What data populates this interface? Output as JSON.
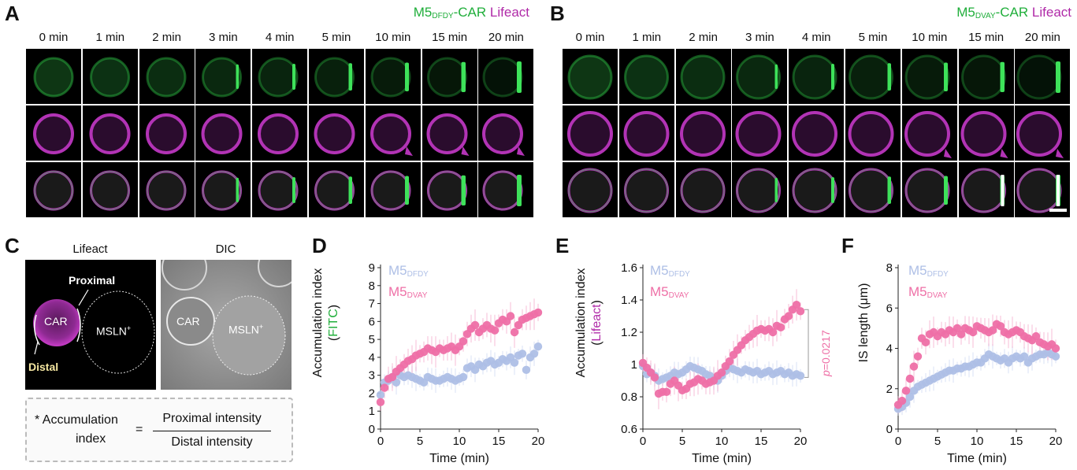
{
  "panelA": {
    "letter": "A",
    "title_prefix": "M5",
    "title_sub": "DFDY",
    "title_mid": "-CAR",
    "title_lifeact": "Lifeact",
    "times": [
      "0 min",
      "1 min",
      "2 min",
      "3 min",
      "4 min",
      "5 min",
      "10 min",
      "15 min",
      "20 min"
    ]
  },
  "panelB": {
    "letter": "B",
    "title_prefix": "M5",
    "title_sub": "DVAY",
    "title_mid": "-CAR",
    "title_lifeact": "Lifeact",
    "times": [
      "0 min",
      "1 min",
      "2 min",
      "3 min",
      "4 min",
      "5 min",
      "10 min",
      "15 min",
      "20 min"
    ]
  },
  "panelC": {
    "letter": "C",
    "label_lifeact": "Lifeact",
    "label_dic": "DIC",
    "proximal": "Proximal",
    "distal": "Distal",
    "car": "CAR",
    "msln": "MSLN",
    "msln_sup": "+",
    "car_dic": "CAR",
    "formula_lhs1": "* Accumulation",
    "formula_lhs2": "index",
    "formula_eq": "=",
    "formula_num": "Proximal intensity",
    "formula_den": "Distal intensity"
  },
  "panelD": {
    "letter": "D",
    "legend_prefix": "M5",
    "legend1_sub": "DFDY",
    "legend2_sub": "DVAY",
    "ylabel1": "Accumulation index",
    "ylabel2_open": "(",
    "ylabel2_word": "FITC",
    "ylabel2_close": ")",
    "xlabel": "Time (min)"
  },
  "panelE": {
    "letter": "E",
    "legend_prefix": "M5",
    "legend1_sub": "DFDY",
    "legend2_sub": "DVAY",
    "ylabel1": "Accumulation index",
    "ylabel2_open": "(",
    "ylabel2_word": "Lifeact",
    "ylabel2_close": ")",
    "xlabel": "Time (min)",
    "pvalue_p": "p",
    "pvalue": "=0.0217"
  },
  "panelF": {
    "letter": "F",
    "legend_prefix": "M5",
    "legend1_sub": "DFDY",
    "legend2_sub": "DVAY",
    "ylabel": "IS length (μm)",
    "xlabel": "Time (min)"
  },
  "colors": {
    "dfdy": "#aebfe6",
    "dvay": "#ee6fa6",
    "green": "#1fae3a",
    "magenta": "#b02aa8"
  },
  "chart_data": [
    {
      "id": "D",
      "type": "scatter",
      "xlim": [
        0,
        20
      ],
      "ylim": [
        0,
        9
      ],
      "xticks": [
        "0",
        "5",
        "10",
        "15",
        "20"
      ],
      "yticks": [
        "0",
        "1",
        "2",
        "3",
        "4",
        "5",
        "6",
        "7",
        "8",
        "9"
      ],
      "xlabel": "Time (min)",
      "ylabel": "Accumulation index (FITC)",
      "series": [
        {
          "name": "M5DFDY",
          "x": [
            0,
            0.5,
            1,
            1.5,
            2,
            2.5,
            3,
            3.5,
            4,
            4.5,
            5,
            5.5,
            6,
            6.5,
            7,
            7.5,
            8,
            8.5,
            9,
            9.5,
            10,
            10.5,
            11,
            11.5,
            12,
            12.5,
            13,
            13.5,
            14,
            14.5,
            15,
            15.5,
            16,
            16.5,
            17,
            17.5,
            18,
            18.5,
            19,
            19.5,
            20
          ],
          "y": [
            1.9,
            2.6,
            2.7,
            2.9,
            2.6,
            3.0,
            2.9,
            3.0,
            2.9,
            2.8,
            2.7,
            2.6,
            2.9,
            2.8,
            2.7,
            2.7,
            2.8,
            2.9,
            2.8,
            2.7,
            2.8,
            2.9,
            3.4,
            3.5,
            3.3,
            3.6,
            3.5,
            3.7,
            3.8,
            3.6,
            3.7,
            3.9,
            3.8,
            4.0,
            3.7,
            4.1,
            4.2,
            3.3,
            4.0,
            4.2,
            4.6
          ]
        },
        {
          "name": "M5DVAY",
          "x": [
            0,
            0.5,
            1,
            1.5,
            2,
            2.5,
            3,
            3.5,
            4,
            4.5,
            5,
            5.5,
            6,
            6.5,
            7,
            7.5,
            8,
            8.5,
            9,
            9.5,
            10,
            10.5,
            11,
            11.5,
            12,
            12.5,
            13,
            13.5,
            14,
            14.5,
            15,
            15.5,
            16,
            16.5,
            17,
            17.5,
            18,
            18.5,
            19,
            19.5,
            20
          ],
          "y": [
            1.5,
            2.3,
            2.8,
            2.9,
            3.2,
            3.4,
            3.6,
            3.8,
            3.9,
            4.1,
            4.2,
            4.3,
            4.5,
            4.4,
            4.3,
            4.5,
            4.4,
            4.5,
            4.6,
            4.4,
            4.6,
            4.9,
            5.3,
            5.6,
            5.8,
            5.4,
            5.6,
            5.8,
            5.6,
            5.5,
            5.9,
            6.1,
            6.0,
            6.3,
            5.4,
            5.8,
            6.1,
            6.2,
            6.3,
            6.4,
            6.5
          ]
        }
      ]
    },
    {
      "id": "E",
      "type": "scatter",
      "xlim": [
        0,
        20
      ],
      "ylim": [
        0.6,
        1.6
      ],
      "xticks": [
        "0",
        "5",
        "10",
        "15",
        "20"
      ],
      "yticks": [
        "0.6",
        "0.8",
        "1",
        "1.2",
        "1.4",
        "1.6"
      ],
      "xlabel": "Time (min)",
      "ylabel": "Accumulation index (Lifeact)",
      "series": [
        {
          "name": "M5DFDY",
          "x": [
            0,
            0.5,
            1,
            1.5,
            2,
            2.5,
            3,
            3.5,
            4,
            4.5,
            5,
            5.5,
            6,
            6.5,
            7,
            7.5,
            8,
            8.5,
            9,
            9.5,
            10,
            10.5,
            11,
            11.5,
            12,
            12.5,
            13,
            13.5,
            14,
            14.5,
            15,
            15.5,
            16,
            16.5,
            17,
            17.5,
            18,
            18.5,
            19,
            19.5,
            20
          ],
          "y": [
            0.99,
            0.94,
            0.95,
            0.93,
            0.9,
            0.91,
            0.92,
            0.93,
            0.95,
            0.94,
            0.95,
            0.97,
            0.99,
            0.98,
            0.97,
            0.96,
            0.94,
            0.93,
            0.91,
            0.9,
            0.93,
            0.96,
            0.98,
            0.97,
            0.96,
            0.95,
            0.97,
            0.96,
            0.95,
            0.96,
            0.94,
            0.95,
            0.96,
            0.94,
            0.95,
            0.96,
            0.94,
            0.95,
            0.93,
            0.94,
            0.93
          ]
        },
        {
          "name": "M5DVAY",
          "x": [
            0,
            0.5,
            1,
            1.5,
            2,
            2.5,
            3,
            3.5,
            4,
            4.5,
            5,
            5.5,
            6,
            6.5,
            7,
            7.5,
            8,
            8.5,
            9,
            9.5,
            10,
            10.5,
            11,
            11.5,
            12,
            12.5,
            13,
            13.5,
            14,
            14.5,
            15,
            15.5,
            16,
            16.5,
            17,
            17.5,
            18,
            18.5,
            19,
            19.5,
            20
          ],
          "y": [
            1.01,
            0.98,
            0.95,
            0.92,
            0.82,
            0.83,
            0.83,
            0.88,
            0.9,
            0.87,
            0.84,
            0.85,
            0.88,
            0.89,
            0.91,
            0.9,
            0.88,
            0.89,
            0.9,
            0.93,
            0.95,
            0.99,
            1.02,
            1.06,
            1.09,
            1.12,
            1.15,
            1.17,
            1.19,
            1.21,
            1.22,
            1.21,
            1.22,
            1.2,
            1.24,
            1.23,
            1.28,
            1.3,
            1.34,
            1.37,
            1.33
          ]
        }
      ]
    },
    {
      "id": "F",
      "type": "scatter",
      "xlim": [
        0,
        20
      ],
      "ylim": [
        0,
        8
      ],
      "xticks": [
        "0",
        "5",
        "10",
        "15",
        "20"
      ],
      "yticks": [
        "0",
        "2",
        "4",
        "6",
        "8"
      ],
      "xlabel": "Time (min)",
      "ylabel": "IS length (μm)",
      "series": [
        {
          "name": "M5DFDY",
          "x": [
            0,
            0.5,
            1,
            1.5,
            2,
            2.5,
            3,
            3.5,
            4,
            4.5,
            5,
            5.5,
            6,
            6.5,
            7,
            7.5,
            8,
            8.5,
            9,
            9.5,
            10,
            10.5,
            11,
            11.5,
            12,
            12.5,
            13,
            13.5,
            14,
            14.5,
            15,
            15.5,
            16,
            16.5,
            17,
            17.5,
            18,
            18.5,
            19,
            19.5,
            20
          ],
          "y": [
            1.0,
            1.1,
            1.3,
            1.6,
            1.9,
            2.1,
            2.2,
            2.3,
            2.4,
            2.5,
            2.6,
            2.7,
            2.8,
            2.9,
            2.9,
            3.0,
            3.0,
            3.1,
            3.1,
            3.2,
            3.3,
            3.3,
            3.5,
            3.7,
            3.6,
            3.5,
            3.4,
            3.5,
            3.3,
            3.5,
            3.6,
            3.5,
            3.6,
            3.3,
            3.5,
            3.6,
            3.7,
            3.7,
            3.8,
            3.7,
            3.6
          ]
        },
        {
          "name": "M5DVAY",
          "x": [
            0,
            0.5,
            1,
            1.5,
            2,
            2.5,
            3,
            3.5,
            4,
            4.5,
            5,
            5.5,
            6,
            6.5,
            7,
            7.5,
            8,
            8.5,
            9,
            9.5,
            10,
            10.5,
            11,
            11.5,
            12,
            12.5,
            13,
            13.5,
            14,
            14.5,
            15,
            15.5,
            16,
            16.5,
            17,
            17.5,
            18,
            18.5,
            19,
            19.5,
            20
          ],
          "y": [
            1.2,
            1.4,
            1.9,
            2.5,
            3.1,
            3.6,
            4.5,
            4.3,
            4.7,
            4.8,
            4.6,
            4.8,
            4.7,
            4.9,
            4.8,
            5.0,
            4.7,
            5.0,
            4.9,
            4.8,
            5.1,
            5.0,
            4.9,
            4.8,
            4.9,
            5.2,
            5.1,
            4.8,
            4.7,
            4.8,
            4.9,
            4.8,
            4.6,
            4.5,
            4.4,
            4.6,
            4.3,
            4.2,
            4.1,
            4.2,
            4.0
          ]
        }
      ]
    }
  ]
}
